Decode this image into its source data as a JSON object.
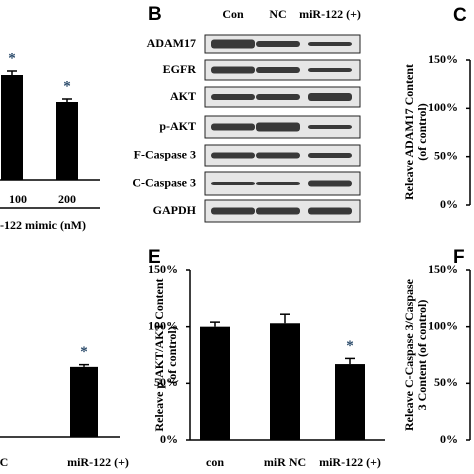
{
  "chart_data": [
    {
      "type": "bar",
      "categories": [
        "100",
        "200"
      ],
      "values": [
        105,
        78
      ],
      "errors": [
        4,
        3
      ],
      "value_annotations": [
        "*",
        "*"
      ],
      "xlabel": "-122 mimic (nM)",
      "ylim": [
        0,
        150
      ],
      "color": "#000000"
    },
    {
      "type": "bar",
      "label": "C",
      "ylabel": [
        "Releave ADAM17 Content",
        "(of control)"
      ],
      "categories": [],
      "values": [],
      "ylim": [
        0,
        150
      ],
      "yticks": [
        {
          "value": 0,
          "label": "0%"
        },
        {
          "value": 50,
          "label": "50%"
        },
        {
          "value": 100,
          "label": "100%"
        },
        {
          "value": 150,
          "label": "150%"
        }
      ],
      "color": "#000000"
    },
    {
      "type": "bar",
      "categories": [
        "C",
        "miR-122 (+)"
      ],
      "values": [
        null,
        63
      ],
      "errors": [
        null,
        2
      ],
      "value_annotations": [
        null,
        "*"
      ],
      "ylim": [
        0,
        150
      ],
      "color": "#000000"
    },
    {
      "type": "bar",
      "label": "E",
      "ylabel": [
        "Releave p-AKT/AKT Content",
        "(of control)"
      ],
      "categories": [
        "con",
        "miR NC",
        "miR-122 (+)"
      ],
      "values": [
        100,
        103,
        67
      ],
      "errors": [
        4,
        8,
        5
      ],
      "value_annotations": [
        null,
        null,
        "*"
      ],
      "ylim": [
        0,
        150
      ],
      "yticks": [
        {
          "value": 0,
          "label": "0%"
        },
        {
          "value": 50,
          "label": "50%"
        },
        {
          "value": 100,
          "label": "100%"
        },
        {
          "value": 150,
          "label": "150%"
        }
      ],
      "color": "#000000"
    },
    {
      "type": "bar",
      "label": "F",
      "ylabel": [
        "Releave C-Caspase 3/Caspase",
        "3 Content (of control)"
      ],
      "categories": [],
      "values": [],
      "ylim": [
        0,
        150
      ],
      "yticks": [
        {
          "value": 0,
          "label": "0%"
        },
        {
          "value": 50,
          "label": "50%"
        },
        {
          "value": 100,
          "label": "100%"
        },
        {
          "value": 150,
          "label": "150%"
        }
      ],
      "color": "#000000"
    }
  ],
  "blot": {
    "label": "B",
    "columns": [
      "Con",
      "NC",
      "miR-122 (+)"
    ],
    "rows": [
      "ADAM17",
      "EGFR",
      "AKT",
      "p-AKT",
      "F-Caspase 3",
      "C-Caspase 3",
      "GAPDH"
    ]
  }
}
